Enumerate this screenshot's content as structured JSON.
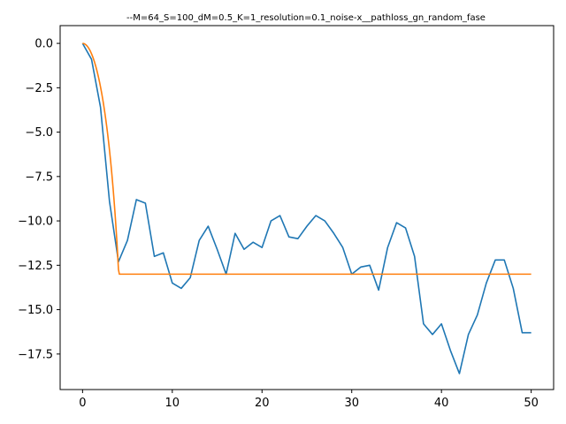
{
  "chart_data": {
    "type": "line",
    "title": "--M=64_S=100_dM=0.5_K=1_resolution=0.1_noise-x__pathloss_gn_random_fase",
    "xlabel": "",
    "ylabel": "",
    "xlim": [
      -2.5,
      52.5
    ],
    "ylim": [
      -19.5,
      1.0
    ],
    "xticks": [
      0,
      10,
      20,
      30,
      40,
      50
    ],
    "yticks": [
      0.0,
      -2.5,
      -5.0,
      -7.5,
      -10.0,
      -12.5,
      -15.0,
      -17.5
    ],
    "grid": false,
    "legend": "none",
    "series": [
      {
        "color": "#1f77b4",
        "x": [
          0,
          1,
          2,
          3,
          4,
          5,
          6,
          7,
          8,
          9,
          10,
          11,
          12,
          13,
          14,
          15,
          16,
          17,
          18,
          19,
          20,
          21,
          22,
          23,
          24,
          25,
          26,
          27,
          28,
          29,
          30,
          31,
          32,
          33,
          34,
          35,
          36,
          37,
          38,
          39,
          40,
          41,
          42,
          43,
          44,
          45,
          46,
          47,
          48,
          49,
          50
        ],
        "y": [
          0.0,
          -0.9,
          -3.6,
          -8.9,
          -12.3,
          -11.1,
          -8.8,
          -9.0,
          -12.0,
          -11.8,
          -13.5,
          -13.8,
          -13.2,
          -11.1,
          -10.3,
          -11.6,
          -13.0,
          -10.7,
          -11.6,
          -11.2,
          -11.5,
          -10.0,
          -9.7,
          -10.9,
          -11.0,
          -10.3,
          -9.7,
          -10.0,
          -10.7,
          -11.5,
          -13.0,
          -12.6,
          -12.5,
          -13.9,
          -11.5,
          -10.1,
          -10.4,
          -12.0,
          -15.8,
          -16.4,
          -15.8,
          -17.3,
          -18.6,
          -16.4,
          -15.3,
          -13.5,
          -12.2,
          -12.2,
          -13.8,
          -16.3,
          -16.3
        ]
      },
      {
        "color": "#ff7f0e",
        "curve": "sinc-envelope"
      }
    ]
  }
}
